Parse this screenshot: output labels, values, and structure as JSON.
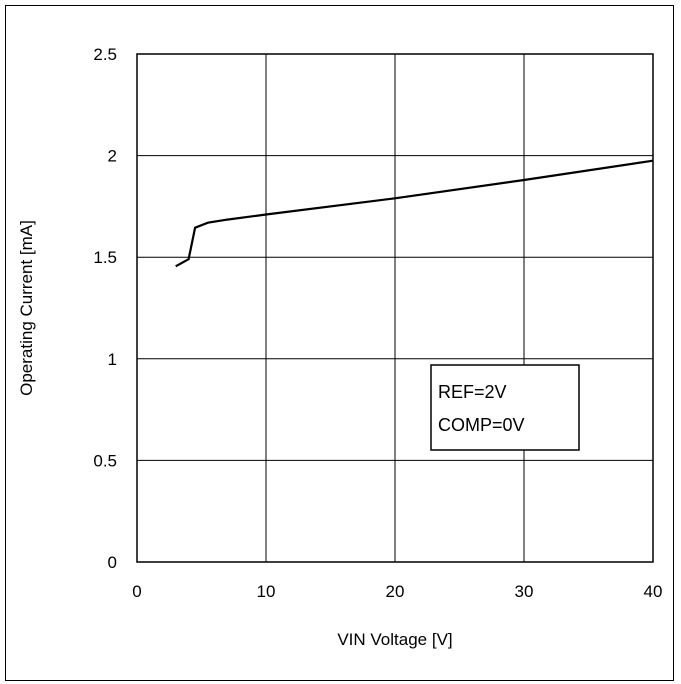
{
  "chart_data": {
    "type": "line",
    "title": "",
    "xlabel": "VIN Voltage [V]",
    "ylabel": "Operating Current [mA]",
    "xlim": [
      0,
      40
    ],
    "ylim": [
      0,
      2.5
    ],
    "xticks": [
      "0",
      "10",
      "20",
      "30",
      "40"
    ],
    "yticks": [
      "0",
      "0.5",
      "1",
      "1.5",
      "2",
      "2.5"
    ],
    "grid": true,
    "legend": "none",
    "annotation": [
      "REF=2V",
      "COMP=0V"
    ],
    "series": [
      {
        "x": [
          3.0,
          4.0,
          4.5,
          5.5,
          7.0,
          10.0,
          20.0,
          30.0,
          40.0
        ],
        "y": [
          1.455,
          1.49,
          1.645,
          1.67,
          1.685,
          1.71,
          1.79,
          1.88,
          1.975
        ]
      }
    ],
    "colors": {
      "line": "#000000",
      "grid": "#000000"
    }
  }
}
